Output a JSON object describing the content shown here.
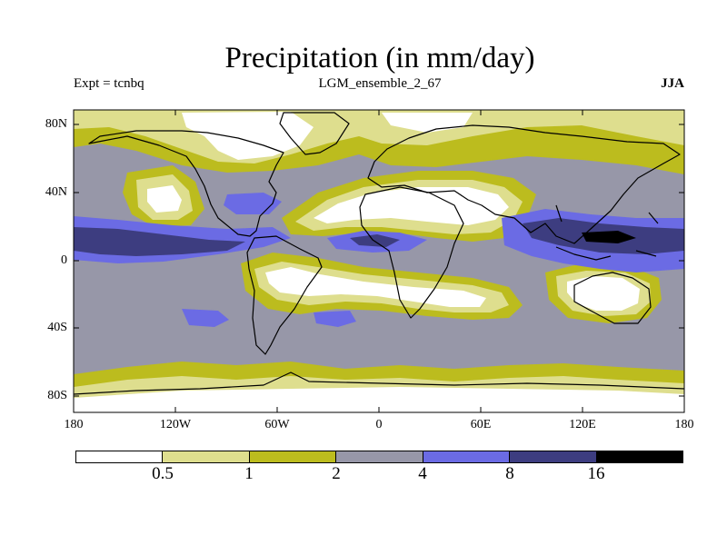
{
  "title": "Precipitation (in mm/day)",
  "experiment": "Expt = tcnbq",
  "run_name": "LGM_ensemble_2_67",
  "season": "JJA",
  "lat_labels": [
    "80N",
    "40N",
    "0",
    "40S",
    "80S"
  ],
  "lon_labels": [
    "180",
    "120W",
    "60W",
    "0",
    "60E",
    "120E",
    "180"
  ],
  "colorbar": {
    "colors": [
      "#ffffff",
      "#dede8e",
      "#bcbc1e",
      "#9797a8",
      "#6b6be4",
      "#3d3d80",
      "#000000"
    ],
    "labels": [
      "0.5",
      "1",
      "2",
      "4",
      "8",
      "16"
    ]
  }
}
